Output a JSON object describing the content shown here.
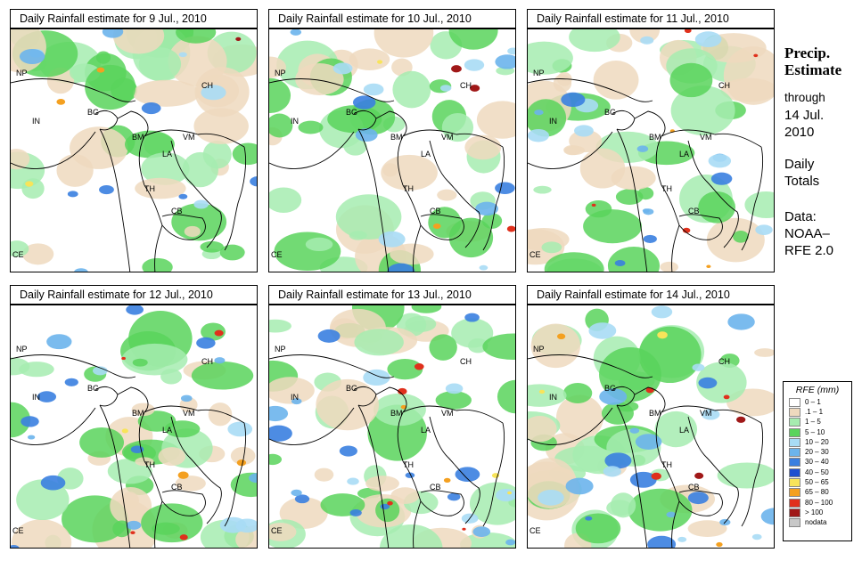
{
  "panels": [
    {
      "title": "Daily Rainfall estimate for  9 Jul., 2010",
      "intensity": 1
    },
    {
      "title": "Daily Rainfall estimate for  10 Jul., 2010",
      "intensity": 2
    },
    {
      "title": "Daily Rainfall estimate for  11 Jul., 2010",
      "intensity": 3
    },
    {
      "title": "Daily Rainfall estimate for  12 Jul., 2010",
      "intensity": 4
    },
    {
      "title": "Daily Rainfall estimate for  13 Jul., 2010",
      "intensity": 5
    },
    {
      "title": "Daily Rainfall estimate for  14 Jul., 2010",
      "intensity": 6
    }
  ],
  "country_labels": [
    "NP",
    "CH",
    "IN",
    "BG",
    "BM",
    "VM",
    "LA",
    "TH",
    "CB",
    "CE"
  ],
  "side": {
    "title": "Precip.\nEstimate",
    "through_label": "through",
    "date": "14 Jul.\n2010",
    "totals": "Daily\nTotals",
    "source": "Data:\nNOAA–\nRFE 2.0"
  },
  "legend": {
    "title": "RFE (mm)",
    "items": [
      {
        "label": "0 – 1",
        "color": "#ffffff"
      },
      {
        "label": ".1 – 1",
        "color": "#eed9be"
      },
      {
        "label": "1 – 5",
        "color": "#a6ecb0"
      },
      {
        "label": "5 – 10",
        "color": "#59d45c"
      },
      {
        "label": "10 – 20",
        "color": "#a8dcf5"
      },
      {
        "label": "20 – 30",
        "color": "#6cb4ec"
      },
      {
        "label": "30 – 40",
        "color": "#3a7fe0"
      },
      {
        "label": "40 – 50",
        "color": "#1f4fd0"
      },
      {
        "label": "50 – 65",
        "color": "#f8e45a"
      },
      {
        "label": "65 – 80",
        "color": "#f4a020"
      },
      {
        "label": "80 – 100",
        "color": "#e0301c"
      },
      {
        "label": "> 100",
        "color": "#a01818"
      },
      {
        "label": "nodata",
        "color": "#c8c8c8"
      }
    ]
  }
}
